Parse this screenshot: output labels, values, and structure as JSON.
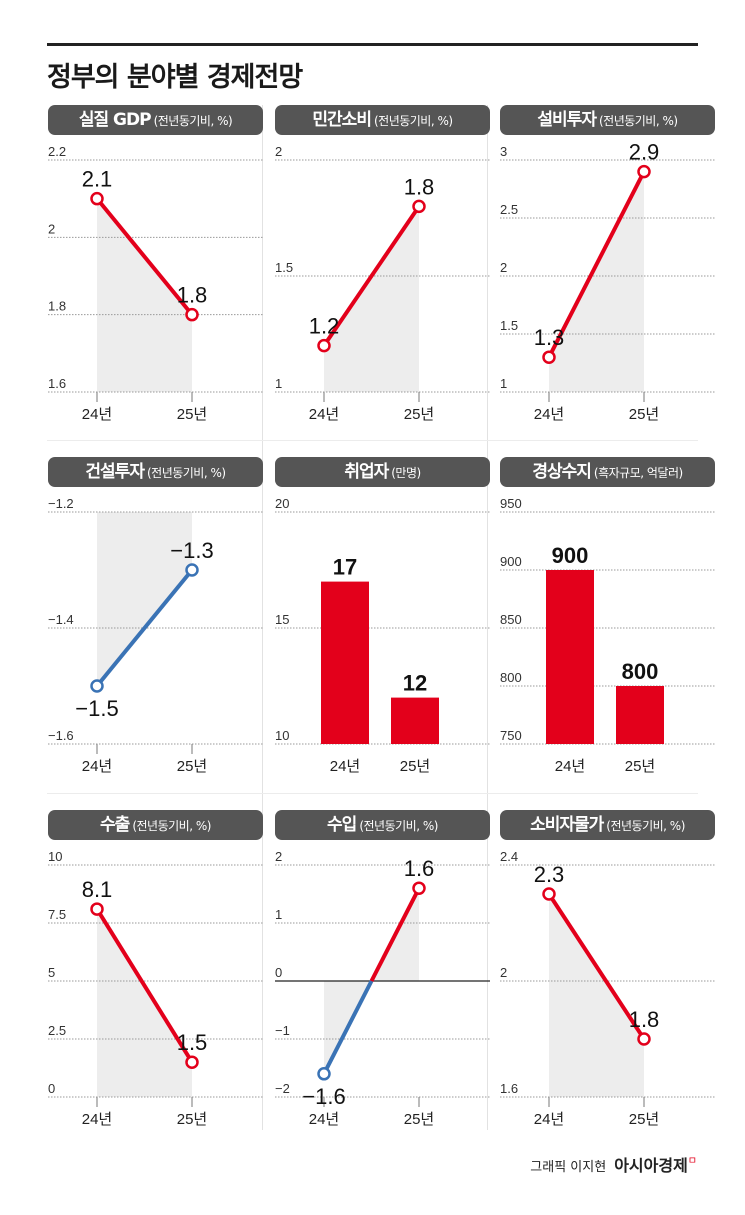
{
  "title": "정부의 분야별 경제전망",
  "credit": {
    "graphic": "그래픽 이지현",
    "brand": "아시아경제",
    "brand_mark": "ㅁ"
  },
  "colors": {
    "up": "#e3001b",
    "down": "#3a73b5",
    "bar": "#e3001b",
    "shade": "#ededed",
    "pill": "#555555"
  },
  "chart_data": [
    {
      "type": "line",
      "title": "실질 GDP",
      "unit": "(전년동기비, %)",
      "categories": [
        "24년",
        "25년"
      ],
      "values": [
        2.1,
        1.8
      ],
      "labels": [
        "2.1",
        "1.8"
      ],
      "ylim": [
        1.6,
        2.2
      ],
      "yticks": [
        1.6,
        1.8,
        2,
        2.2
      ],
      "ytick_labels": [
        "1.6",
        "1.8",
        "2",
        "2.2"
      ],
      "grid": true
    },
    {
      "type": "line",
      "title": "민간소비",
      "unit": "(전년동기비, %)",
      "categories": [
        "24년",
        "25년"
      ],
      "values": [
        1.2,
        1.8
      ],
      "labels": [
        "1.2",
        "1.8"
      ],
      "ylim": [
        1,
        2
      ],
      "yticks": [
        1,
        1.5,
        2
      ],
      "ytick_labels": [
        "1",
        "1.5",
        "2"
      ],
      "grid": true
    },
    {
      "type": "line",
      "title": "설비투자",
      "unit": "(전년동기비, %)",
      "categories": [
        "24년",
        "25년"
      ],
      "values": [
        1.3,
        2.9
      ],
      "labels": [
        "1.3",
        "2.9"
      ],
      "ylim": [
        1,
        3
      ],
      "yticks": [
        1,
        1.5,
        2,
        2.5,
        3
      ],
      "ytick_labels": [
        "1",
        "1.5",
        "2",
        "2.5",
        "3"
      ],
      "grid": true
    },
    {
      "type": "line",
      "title": "건설투자",
      "unit": "(전년동기비, %)",
      "categories": [
        "24년",
        "25년"
      ],
      "values": [
        -1.5,
        -1.3
      ],
      "labels": [
        "−1.5",
        "−1.3"
      ],
      "ylim": [
        -1.6,
        -1.2
      ],
      "yticks": [
        -1.6,
        -1.4,
        -1.2
      ],
      "ytick_labels": [
        "−1.6",
        "−1.4",
        "−1.2"
      ],
      "grid": true
    },
    {
      "type": "bar",
      "title": "취업자",
      "unit": "(만명)",
      "categories": [
        "24년",
        "25년"
      ],
      "values": [
        17,
        12
      ],
      "labels": [
        "17",
        "12"
      ],
      "ylim": [
        10,
        20
      ],
      "yticks": [
        10,
        15,
        20
      ],
      "ytick_labels": [
        "10",
        "15",
        "20"
      ],
      "grid": true
    },
    {
      "type": "bar",
      "title": "경상수지",
      "unit": "(흑자규모, 억달러)",
      "categories": [
        "24년",
        "25년"
      ],
      "values": [
        900,
        800
      ],
      "labels": [
        "900",
        "800"
      ],
      "ylim": [
        750,
        950
      ],
      "yticks": [
        750,
        800,
        850,
        900,
        950
      ],
      "ytick_labels": [
        "750",
        "800",
        "850",
        "900",
        "950"
      ],
      "grid": true
    },
    {
      "type": "line",
      "title": "수출",
      "unit": "(전년동기비, %)",
      "categories": [
        "24년",
        "25년"
      ],
      "values": [
        8.1,
        1.5
      ],
      "labels": [
        "8.1",
        "1.5"
      ],
      "ylim": [
        0,
        10
      ],
      "yticks": [
        0,
        2.5,
        5,
        7.5,
        10
      ],
      "ytick_labels": [
        "0",
        "2.5",
        "5",
        "7.5",
        "10"
      ],
      "grid": true
    },
    {
      "type": "line",
      "title": "수입",
      "unit": "(전년동기비, %)",
      "categories": [
        "24년",
        "25년"
      ],
      "values": [
        -1.6,
        1.6
      ],
      "labels": [
        "−1.6",
        "1.6"
      ],
      "ylim": [
        -2,
        2
      ],
      "yticks": [
        -2,
        -1,
        0,
        1,
        2
      ],
      "ytick_labels": [
        "−2",
        "−1",
        "0",
        "1",
        "2"
      ],
      "grid": true
    },
    {
      "type": "line",
      "title": "소비자물가",
      "unit": "(전년동기비, %)",
      "categories": [
        "24년",
        "25년"
      ],
      "values": [
        2.3,
        1.8
      ],
      "labels": [
        "2.3",
        "1.8"
      ],
      "ylim": [
        1.6,
        2.4
      ],
      "yticks": [
        1.6,
        2,
        2.4
      ],
      "ytick_labels": [
        "1.6",
        "2",
        "2.4"
      ],
      "grid": true
    }
  ]
}
